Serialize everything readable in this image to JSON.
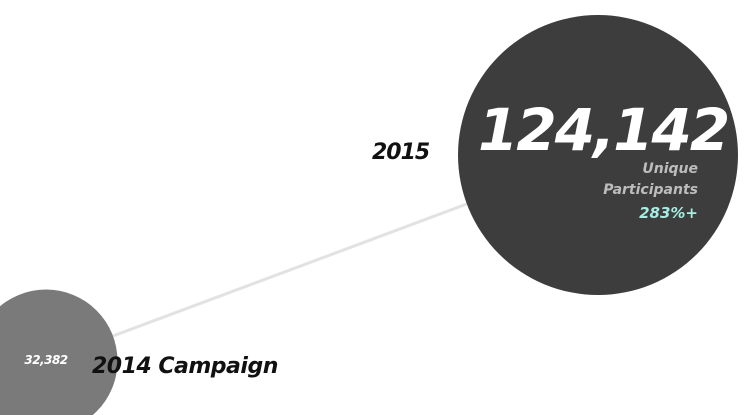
{
  "chart_data": {
    "type": "bubble",
    "series": [
      {
        "category": "2014 Campaign",
        "value": 32382,
        "value_label": "32,382",
        "color": "#7a7a7a"
      },
      {
        "category": "2015",
        "value": 124142,
        "value_label": "124,142",
        "caption_line1": "Unique",
        "caption_line2": "Participants",
        "growth": "283%+",
        "color": "#3d3d3d"
      }
    ],
    "connector_color": "#e2e2e2",
    "growth_color": "#a6ede2"
  }
}
